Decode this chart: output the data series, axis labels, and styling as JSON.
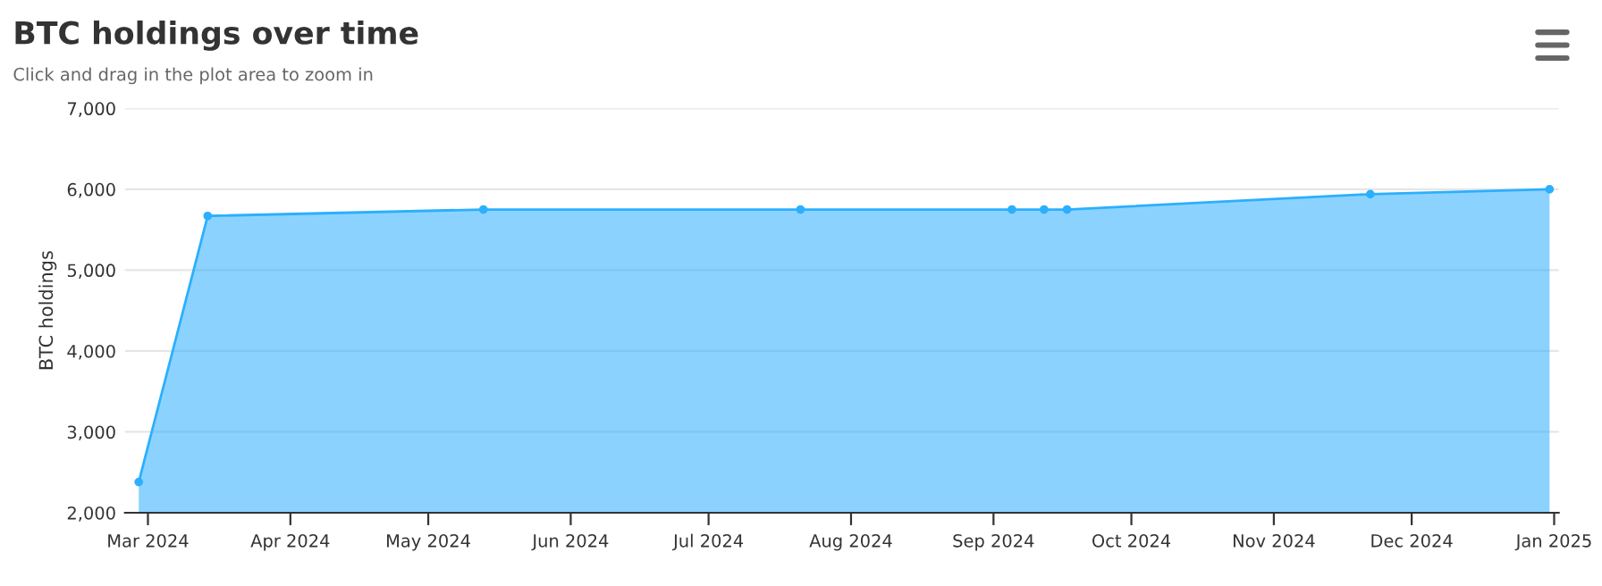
{
  "chart_data": {
    "type": "area",
    "title": "BTC holdings over time",
    "subtitle": "Click and drag in the plot area to zoom in",
    "ylabel": "BTC holdings",
    "x": [
      "2024-02-28",
      "2024-03-14",
      "2024-05-13",
      "2024-07-21",
      "2024-09-05",
      "2024-09-12",
      "2024-09-17",
      "2024-11-22",
      "2024-12-31"
    ],
    "series": [
      {
        "color": "#2caffe",
        "values": [
          2380,
          5670,
          5750,
          5750,
          5750,
          5750,
          5750,
          5940,
          6000
        ]
      }
    ],
    "xlim": [
      "2024-02-25",
      "2025-01-02"
    ],
    "xticks": [
      {
        "value": "2024-03-01",
        "label": "Mar 2024"
      },
      {
        "value": "2024-04-01",
        "label": "Apr 2024"
      },
      {
        "value": "2024-05-01",
        "label": "May 2024"
      },
      {
        "value": "2024-06-01",
        "label": "Jun 2024"
      },
      {
        "value": "2024-07-01",
        "label": "Jul 2024"
      },
      {
        "value": "2024-08-01",
        "label": "Aug 2024"
      },
      {
        "value": "2024-09-01",
        "label": "Sep 2024"
      },
      {
        "value": "2024-10-01",
        "label": "Oct 2024"
      },
      {
        "value": "2024-11-01",
        "label": "Nov 2024"
      },
      {
        "value": "2024-12-01",
        "label": "Dec 2024"
      },
      {
        "value": "2025-01-01",
        "label": "Jan 2025"
      }
    ],
    "ylim": [
      2000,
      7000
    ],
    "yticks": [
      {
        "value": 2000,
        "label": "2,000"
      },
      {
        "value": 3000,
        "label": "3,000"
      },
      {
        "value": 4000,
        "label": "4,000"
      },
      {
        "value": 5000,
        "label": "5,000"
      },
      {
        "value": 6000,
        "label": "6,000"
      },
      {
        "value": 7000,
        "label": "7,000"
      }
    ],
    "grid": "y",
    "marker": "circle"
  }
}
